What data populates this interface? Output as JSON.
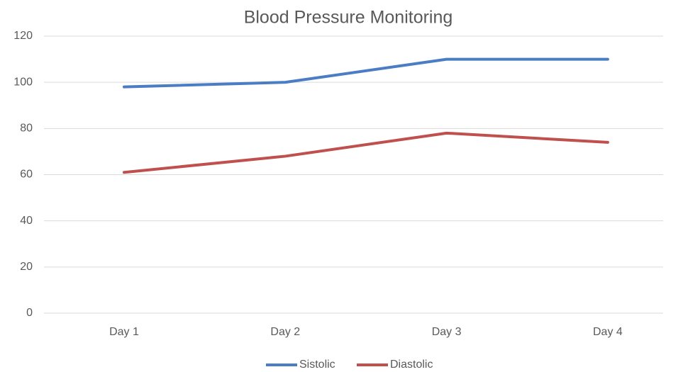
{
  "chart_data": {
    "type": "line",
    "title": "Blood Pressure Monitoring",
    "categories": [
      "Day 1",
      "Day 2",
      "Day 3",
      "Day 4"
    ],
    "series": [
      {
        "name": "Sistolic",
        "color": "#4a7dc4",
        "values": [
          98,
          100,
          110,
          110
        ]
      },
      {
        "name": "Diastolic",
        "color": "#c0504d",
        "values": [
          61,
          68,
          78,
          74
        ]
      }
    ],
    "ylim": [
      0,
      120
    ],
    "yticks": [
      0,
      20,
      40,
      60,
      80,
      100,
      120
    ],
    "grid": true,
    "legend": "bottom"
  }
}
